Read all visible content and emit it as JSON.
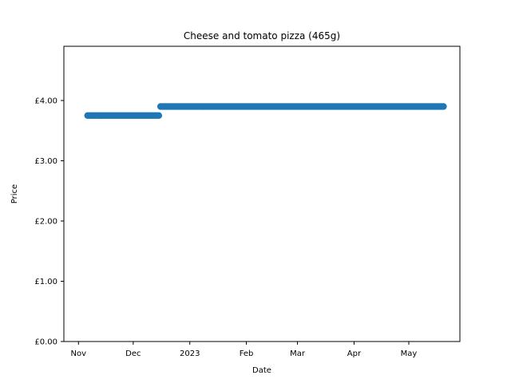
{
  "chart_data": {
    "type": "scatter",
    "title": "Cheese and tomato pizza (465g)",
    "xlabel": "Date",
    "ylabel": "Price",
    "x_range": [
      "2022-10-24",
      "2023-05-29"
    ],
    "ylim": [
      0,
      4.9
    ],
    "grid": false,
    "marker_color": "#1f77b4",
    "x_ticks": [
      {
        "date": "2022-11-01",
        "label": "Nov"
      },
      {
        "date": "2022-12-01",
        "label": "Dec"
      },
      {
        "date": "2023-01-01",
        "label": "2023"
      },
      {
        "date": "2023-02-01",
        "label": "Feb"
      },
      {
        "date": "2023-03-01",
        "label": "Mar"
      },
      {
        "date": "2023-04-01",
        "label": "Apr"
      },
      {
        "date": "2023-05-01",
        "label": "May"
      }
    ],
    "y_ticks": [
      {
        "value": 0,
        "label": "£0.00"
      },
      {
        "value": 1,
        "label": "£1.00"
      },
      {
        "value": 2,
        "label": "£2.00"
      },
      {
        "value": 3,
        "label": "£3.00"
      },
      {
        "value": 4,
        "label": "£4.00"
      }
    ],
    "segments": [
      {
        "start": "2022-11-06",
        "end": "2022-12-15",
        "value": 3.75
      },
      {
        "start": "2022-12-16",
        "end": "2023-05-20",
        "value": 3.9
      }
    ]
  }
}
